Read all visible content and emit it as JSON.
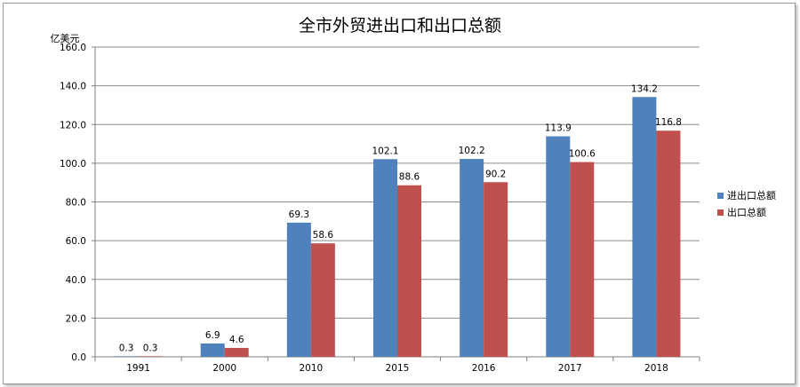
{
  "chart_data": {
    "type": "bar",
    "title": "全市外贸进出口和出口总额",
    "ylabel": "亿美元",
    "xlabel": "",
    "categories": [
      "1991",
      "2000",
      "2010",
      "2015",
      "2016",
      "2017",
      "2018"
    ],
    "series": [
      {
        "name": "进出口总额",
        "color": "#4f81bd",
        "values": [
          0.3,
          6.9,
          69.3,
          102.1,
          102.2,
          113.9,
          134.2
        ]
      },
      {
        "name": "出口总额",
        "color": "#c0504d",
        "values": [
          0.3,
          4.6,
          58.6,
          88.6,
          90.2,
          100.6,
          116.8
        ]
      }
    ],
    "ylim": [
      0,
      160
    ],
    "yticks": [
      "0.0",
      "20.0",
      "40.0",
      "60.0",
      "80.0",
      "100.0",
      "120.0",
      "140.0",
      "160.0"
    ],
    "grid": true,
    "legend": "right"
  }
}
